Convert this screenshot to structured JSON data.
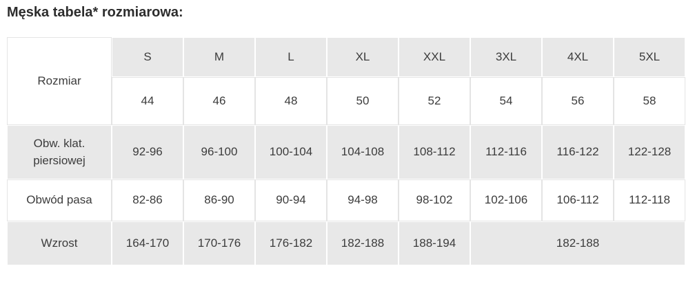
{
  "title": "Męska tabela* rozmiarowa:",
  "colors": {
    "stripe_gray": "#e8e8e8",
    "cell_white": "#ffffff",
    "text": "#3c3c3c",
    "white_cell_border": "#e4e4e4"
  },
  "table": {
    "corner_label": "Rozmiar",
    "sizes": [
      "S",
      "M",
      "L",
      "XL",
      "XXL",
      "3XL",
      "4XL",
      "5XL"
    ],
    "numeric_sizes": [
      "44",
      "46",
      "48",
      "50",
      "52",
      "54",
      "56",
      "58"
    ],
    "rows": [
      {
        "label": "Obw. klat. piersiowej",
        "values": [
          "92-96",
          "96-100",
          "100-104",
          "104-108",
          "108-112",
          "112-116",
          "116-122",
          "122-128"
        ]
      },
      {
        "label": "Obwód pasa",
        "values": [
          "82-86",
          "86-90",
          "90-94",
          "94-98",
          "98-102",
          "102-106",
          "106-112",
          "112-118"
        ]
      },
      {
        "label": "Wzrost",
        "values": [
          "164-170",
          "170-176",
          "176-182",
          "182-188",
          "188-194"
        ],
        "merged_value": "182-188",
        "merged_span": 3
      }
    ]
  }
}
